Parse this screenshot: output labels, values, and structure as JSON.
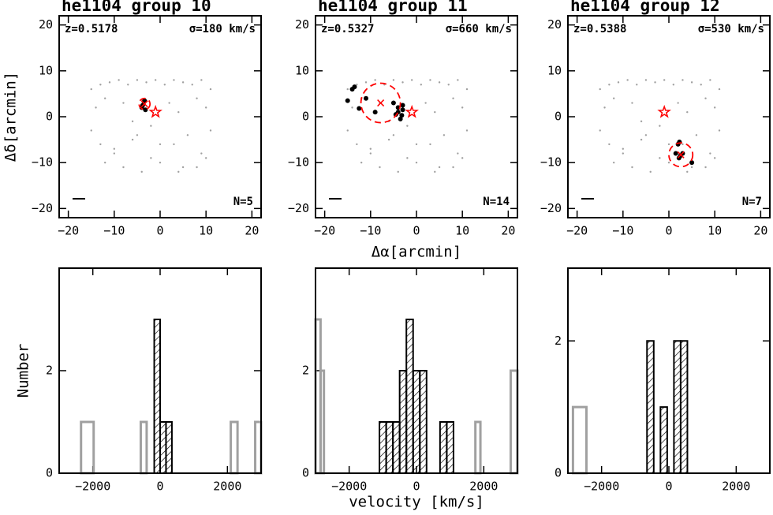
{
  "chart_data": [
    {
      "type": "scatter",
      "title": "he1104 group 10",
      "z_label": "z=0.5178",
      "sigma_label": "σ=180 km/s",
      "n_label": "N=5",
      "y_label": "Δδ[arcmin]",
      "xlim": [
        -22,
        22
      ],
      "ylim": [
        -22,
        22
      ],
      "xticks": [
        {
          "value": -20,
          "label": "−20"
        },
        {
          "value": -10,
          "label": "−10"
        },
        0,
        10,
        20
      ],
      "yticks": [
        {
          "value": -20,
          "label": "−20"
        },
        {
          "value": -10,
          "label": "−10"
        },
        0,
        10,
        20
      ],
      "series": [
        {
          "color": "#a0a0a0",
          "x": [
            -15,
            -13,
            -11,
            -9,
            -7,
            -5,
            -3,
            -1,
            1,
            3,
            5,
            7,
            9,
            11,
            -14,
            -12,
            -8,
            -6,
            -2,
            2,
            4,
            8,
            10,
            -15,
            -13,
            -10,
            -6,
            -2,
            3,
            6,
            9,
            11,
            -12,
            -8,
            -4,
            0,
            4,
            8,
            -10,
            -5,
            0,
            5,
            10
          ],
          "y": [
            6,
            7,
            7.5,
            8,
            7,
            8,
            7.5,
            8,
            7,
            8,
            7.5,
            7,
            8,
            6,
            2,
            4,
            3,
            -1,
            -2,
            3,
            1,
            4,
            2,
            -3,
            -6,
            -8,
            -5,
            -9,
            -6,
            -4,
            -8,
            -3,
            -10,
            -11,
            -12,
            -10,
            -12,
            -11,
            -7,
            -4,
            -6,
            -11,
            -9
          ]
        },
        {
          "color": "#000000",
          "x": [
            -3.5,
            -3.8,
            -3.2,
            -4,
            -3.4
          ],
          "y": [
            3.2,
            2.5,
            1.5,
            2,
            3.5
          ]
        }
      ],
      "center": [
        -3.4,
        2.8
      ],
      "radius": 1.2,
      "qso": [
        -1,
        1
      ],
      "marker_color": "#ff0000"
    },
    {
      "type": "scatter",
      "title": "he1104 group 11",
      "z_label": "z=0.5327",
      "sigma_label": "σ=660 km/s",
      "n_label": "N=14",
      "x_label": "Δα[arcmin]",
      "xlim": [
        -22,
        22
      ],
      "ylim": [
        -22,
        22
      ],
      "xticks": [
        {
          "value": -20,
          "label": "−20"
        },
        {
          "value": -10,
          "label": "−10"
        },
        0,
        10,
        20
      ],
      "yticks": [
        {
          "value": -20,
          "label": "−20"
        },
        {
          "value": -10,
          "label": "−10"
        },
        0,
        10,
        20
      ],
      "series": [
        {
          "color": "#a0a0a0",
          "x": [
            -15,
            -13,
            -11,
            -9,
            -7,
            -5,
            -3,
            -1,
            1,
            3,
            5,
            7,
            9,
            11,
            -14,
            -12,
            -8,
            -6,
            -2,
            2,
            4,
            8,
            10,
            -15,
            -13,
            -10,
            -6,
            -2,
            3,
            6,
            9,
            11,
            -12,
            -8,
            -4,
            0,
            4,
            8,
            -10,
            -5,
            0,
            5,
            10
          ],
          "y": [
            6,
            7,
            7.5,
            8,
            7,
            8,
            7.5,
            8,
            7,
            8,
            7.5,
            7,
            8,
            6,
            2,
            4,
            3,
            -1,
            -2,
            3,
            1,
            4,
            2,
            -3,
            -6,
            -8,
            -5,
            -9,
            -6,
            -4,
            -8,
            -3,
            -10,
            -11,
            -12,
            -10,
            -12,
            -11,
            -7,
            -4,
            -6,
            -11,
            -9
          ]
        },
        {
          "color": "#000000",
          "x": [
            -14,
            -13.5,
            -15,
            -11,
            -12.5,
            -9,
            -5,
            -4,
            -3,
            -4.5,
            -3.5,
            -3.2,
            -4,
            -3
          ],
          "y": [
            6,
            6.5,
            3.5,
            4,
            1.8,
            1,
            3,
            2,
            1.5,
            0.5,
            -0.5,
            0.3,
            1,
            2.5
          ]
        }
      ],
      "center": [
        -7.8,
        3
      ],
      "radius": 4.3,
      "qso": [
        -1,
        1
      ],
      "marker_color": "#ff0000"
    },
    {
      "type": "scatter",
      "title": "he1104 group 12",
      "z_label": "z=0.5388",
      "sigma_label": "σ=530 km/s",
      "n_label": "N=7",
      "xlim": [
        -22,
        22
      ],
      "ylim": [
        -22,
        22
      ],
      "xticks": [
        {
          "value": -20,
          "label": "−20"
        },
        {
          "value": -10,
          "label": "−10"
        },
        0,
        10,
        20
      ],
      "yticks": [
        {
          "value": -20,
          "label": "−20"
        },
        {
          "value": -10,
          "label": "−10"
        },
        0,
        10,
        20
      ],
      "series": [
        {
          "color": "#a0a0a0",
          "x": [
            -15,
            -13,
            -11,
            -9,
            -7,
            -5,
            -3,
            -1,
            1,
            3,
            5,
            7,
            9,
            11,
            -14,
            -12,
            -8,
            -6,
            -2,
            2,
            4,
            8,
            10,
            -15,
            -13,
            -10,
            -6,
            -2,
            3,
            6,
            9,
            11,
            -12,
            -8,
            -4,
            0,
            4,
            8,
            -10,
            -5,
            0,
            5,
            10
          ],
          "y": [
            6,
            7,
            7.5,
            8,
            7,
            8,
            7.5,
            8,
            7,
            8,
            7.5,
            7,
            8,
            6,
            2,
            4,
            3,
            -1,
            -2,
            3,
            1,
            4,
            2,
            -3,
            -6,
            -8,
            -5,
            -9,
            -6,
            -4,
            -8,
            -3,
            -10,
            -11,
            -12,
            -10,
            -12,
            -11,
            -7,
            -4,
            -6,
            -11,
            -9
          ]
        },
        {
          "color": "#000000",
          "x": [
            2,
            2.3,
            1.5,
            2.5,
            3,
            5,
            2.2
          ],
          "y": [
            -6,
            -5.5,
            -8,
            -8.5,
            -8,
            -10,
            -9
          ]
        }
      ],
      "center": [
        2.6,
        -8.3
      ],
      "radius": 2.6,
      "qso": [
        -1,
        1
      ],
      "marker_color": "#ff0000"
    },
    {
      "type": "histogram",
      "y_label": "Number",
      "xlim": [
        -3000,
        3000
      ],
      "ylim": [
        0,
        4
      ],
      "xticks": [
        {
          "value": -2000,
          "label": "−2000"
        },
        0,
        2000
      ],
      "yticks": [
        0,
        2
      ],
      "series": [
        {
          "color": "#a0a0a0",
          "bins": [
            -2350,
            -1975,
            -575,
            -400,
            2100,
            2300,
            2825,
            3000
          ],
          "counts": [
            1,
            0,
            1,
            0,
            1,
            0,
            1
          ]
        },
        {
          "color": "#000000",
          "hatch": true,
          "bins": [
            -175,
            0,
            175,
            350
          ],
          "counts": [
            3,
            1,
            1
          ]
        }
      ]
    },
    {
      "type": "histogram",
      "x_label": "velocity [km/s]",
      "xlim": [
        -3000,
        3000
      ],
      "ylim": [
        0,
        4
      ],
      "xticks": [
        {
          "value": -2000,
          "label": "−2000"
        },
        0,
        2000
      ],
      "yticks": [
        0,
        2
      ],
      "series": [
        {
          "color": "#a0a0a0",
          "bins": [
            -3000,
            -2850,
            -2750,
            1750,
            1900,
            2800,
            3000
          ],
          "counts": [
            3,
            2,
            0,
            1,
            0,
            2
          ]
        },
        {
          "color": "#000000",
          "hatch": true,
          "bins": [
            -1100,
            -900,
            -700,
            -500,
            -300,
            -100,
            100,
            300,
            500,
            700,
            900,
            1100,
            1300
          ],
          "counts": [
            1,
            1,
            1,
            2,
            3,
            2,
            2,
            0,
            0,
            1,
            1,
            0
          ]
        }
      ]
    },
    {
      "type": "histogram",
      "xlim": [
        -3000,
        3000
      ],
      "ylim": [
        0,
        3.1
      ],
      "xticks": [
        {
          "value": -2000,
          "label": "−2000"
        },
        0,
        2000
      ],
      "yticks": [
        0,
        2
      ],
      "series": [
        {
          "color": "#a0a0a0",
          "bins": [
            -2850,
            -2450
          ],
          "counts": [
            1
          ]
        },
        {
          "color": "#000000",
          "hatch": true,
          "bins": [
            -650,
            -450,
            -250,
            -50,
            150,
            350,
            550
          ],
          "counts": [
            2,
            0,
            1,
            0,
            2,
            2
          ]
        }
      ]
    }
  ]
}
